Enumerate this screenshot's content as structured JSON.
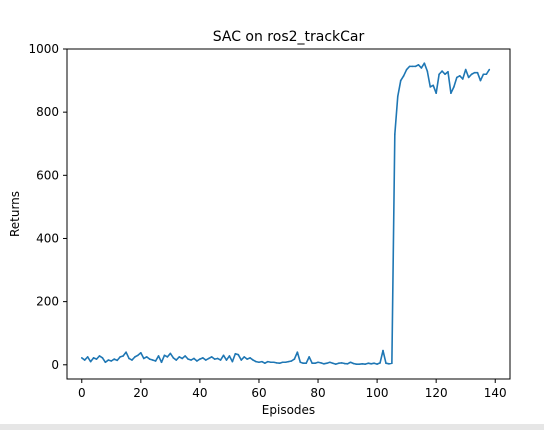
{
  "chart_data": {
    "type": "line",
    "title": "SAC on ros2_trackCar",
    "xlabel": "Episodes",
    "ylabel": "Returns",
    "xlim": [
      -5,
      145
    ],
    "ylim": [
      -45,
      1000
    ],
    "xticks": [
      0,
      20,
      40,
      60,
      80,
      100,
      120,
      140
    ],
    "yticks": [
      0,
      200,
      400,
      600,
      800,
      1000
    ],
    "grid": false,
    "legend": "none",
    "line_color": "#1f77b4",
    "series": [
      {
        "x": [
          0,
          1,
          2,
          3,
          4,
          5,
          6,
          7,
          8,
          9,
          10,
          11,
          12,
          13,
          14,
          15,
          16,
          17,
          18,
          19,
          20,
          21,
          22,
          23,
          24,
          25,
          26,
          27,
          28,
          29,
          30,
          31,
          32,
          33,
          34,
          35,
          36,
          37,
          38,
          39,
          40,
          41,
          42,
          43,
          44,
          45,
          46,
          47,
          48,
          49,
          50,
          51,
          52,
          53,
          54,
          55,
          56,
          57,
          58,
          59,
          60,
          61,
          62,
          63,
          64,
          65,
          66,
          67,
          68,
          69,
          70,
          71,
          72,
          73,
          74,
          75,
          76,
          77,
          78,
          79,
          80,
          81,
          82,
          83,
          84,
          85,
          86,
          87,
          88,
          89,
          90,
          91,
          92,
          93,
          94,
          95,
          96,
          97,
          98,
          99,
          100,
          101,
          102,
          103,
          104,
          105,
          106,
          107,
          108,
          109,
          110,
          111,
          112,
          113,
          114,
          115,
          116,
          117,
          118,
          119,
          120,
          121,
          122,
          123,
          124,
          125,
          126,
          127,
          128,
          129,
          130,
          131,
          132,
          133,
          134,
          135,
          136,
          137,
          138
        ],
        "values": [
          22,
          15,
          25,
          10,
          22,
          18,
          28,
          22,
          8,
          15,
          12,
          18,
          14,
          25,
          28,
          40,
          20,
          15,
          25,
          30,
          38,
          20,
          25,
          18,
          15,
          12,
          28,
          8,
          30,
          25,
          36,
          22,
          15,
          25,
          20,
          28,
          18,
          15,
          20,
          12,
          18,
          22,
          15,
          20,
          25,
          18,
          20,
          15,
          30,
          15,
          28,
          10,
          35,
          32,
          15,
          25,
          18,
          22,
          15,
          10,
          8,
          10,
          5,
          10,
          8,
          8,
          6,
          5,
          8,
          8,
          10,
          12,
          18,
          40,
          8,
          5,
          5,
          25,
          5,
          5,
          8,
          6,
          3,
          5,
          8,
          5,
          2,
          5,
          6,
          4,
          3,
          8,
          4,
          2,
          2,
          3,
          2,
          5,
          3,
          5,
          2,
          6,
          45,
          5,
          3,
          5,
          730,
          850,
          900,
          915,
          935,
          945,
          945,
          945,
          950,
          940,
          955,
          930,
          880,
          885,
          860,
          920,
          930,
          920,
          928,
          860,
          880,
          910,
          915,
          905,
          935,
          910,
          920,
          925,
          925,
          900,
          920,
          920,
          935
        ]
      }
    ]
  }
}
